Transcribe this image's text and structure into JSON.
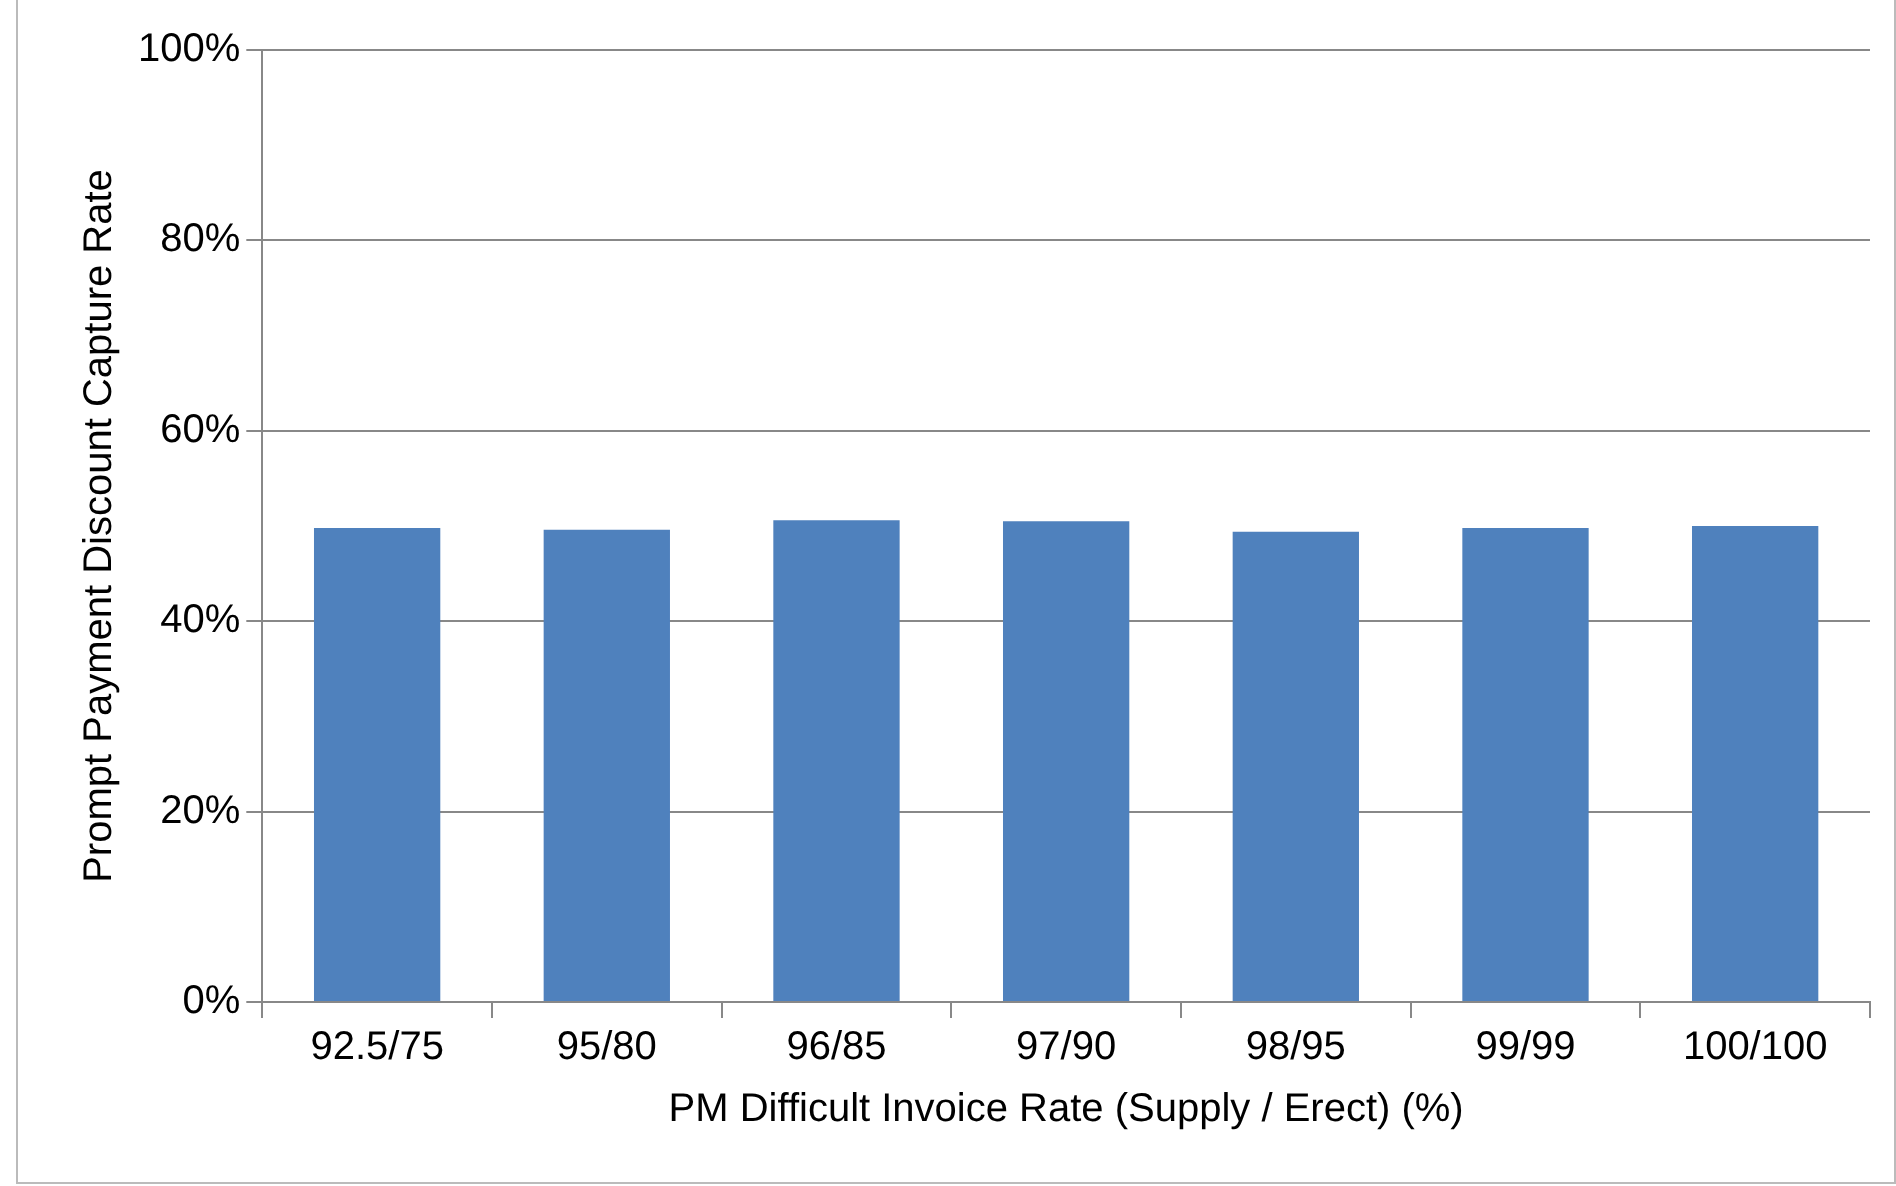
{
  "chart_data": {
    "type": "bar",
    "xlabel": "PM Difficult Invoice Rate (Supply / Erect) (%)",
    "ylabel": "Prompt Payment Discount Capture Rate",
    "categories": [
      "92.5/75",
      "95/80",
      "96/85",
      "97/90",
      "98/95",
      "99/99",
      "100/100"
    ],
    "values": [
      49.8,
      49.6,
      50.6,
      50.5,
      49.4,
      49.8,
      50.0
    ],
    "color": "#4f81bd",
    "ylim": [
      0,
      100
    ],
    "yticks": [
      {
        "value": 0,
        "label": "0%"
      },
      {
        "value": 20,
        "label": "20%"
      },
      {
        "value": 40,
        "label": "40%"
      },
      {
        "value": 60,
        "label": "60%"
      },
      {
        "value": 80,
        "label": "80%"
      },
      {
        "value": 100,
        "label": "100%"
      }
    ],
    "grid": "y",
    "legend": false
  }
}
